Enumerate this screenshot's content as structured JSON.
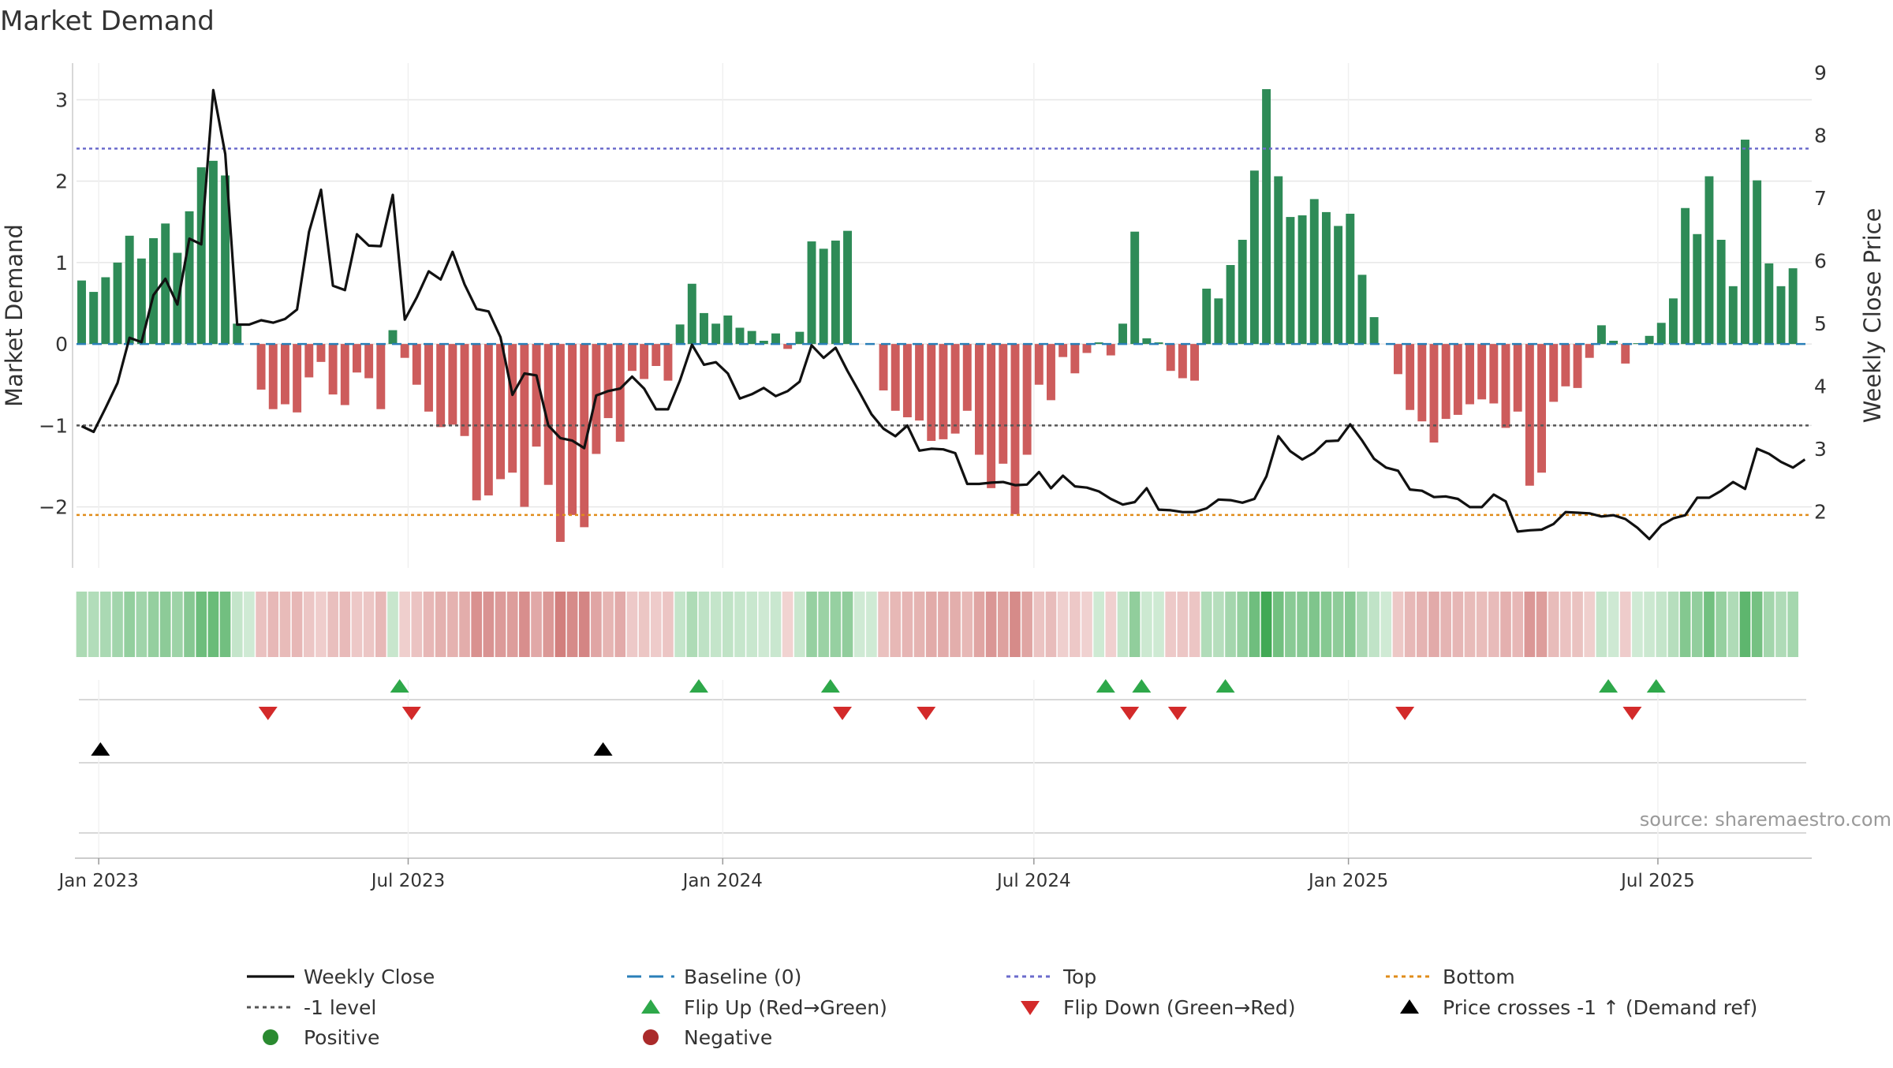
{
  "chart_data": {
    "type": "bar",
    "title": "Market Demand",
    "ylabel": "Market Demand",
    "y2label": "Weekly Close Price",
    "ylim": [
      -2.75,
      3.45
    ],
    "y2lim": [
      1.1,
      9.15
    ],
    "yticks": [
      3,
      2,
      1,
      0,
      -1,
      -2
    ],
    "ytick_labels": [
      "3",
      "2",
      "1",
      "0",
      "−1",
      "−2"
    ],
    "y2ticks": [
      9,
      8,
      7,
      6,
      5,
      4,
      3,
      2
    ],
    "y2tick_labels": [
      "9",
      "8",
      "7",
      "6",
      "5",
      "4",
      "3",
      "2"
    ],
    "x_start": "2022-12-19",
    "x_end": "2025-09-29",
    "bar_dates_first": "2022-12-22",
    "bar_interval_days": 7,
    "xticks": [
      {
        "date": "2023-01-01",
        "label": "Jan 2023"
      },
      {
        "date": "2023-07-01",
        "label": "Jul 2023"
      },
      {
        "date": "2024-01-01",
        "label": "Jan 2024"
      },
      {
        "date": "2024-07-01",
        "label": "Jul 2024"
      },
      {
        "date": "2025-01-01",
        "label": "Jan 2025"
      },
      {
        "date": "2025-07-01",
        "label": "Jul 2025"
      }
    ],
    "reference_lines": [
      {
        "name": "Top",
        "value": 2.4,
        "color": "#6b6bcc"
      },
      {
        "name": "-1 level",
        "value": -1.0,
        "color": "#555555"
      },
      {
        "name": "Bottom",
        "value": -2.1,
        "color": "#e08c1a"
      },
      {
        "name": "Baseline (0)",
        "value": 0,
        "color": "#2a7fb8"
      }
    ],
    "demand": [
      0.78,
      0.64,
      0.82,
      1.0,
      1.33,
      1.05,
      1.3,
      1.48,
      1.12,
      1.63,
      2.17,
      2.25,
      2.07,
      0.25,
      0.0,
      -0.56,
      -0.8,
      -0.74,
      -0.84,
      -0.41,
      -0.22,
      -0.62,
      -0.75,
      -0.35,
      -0.42,
      -0.8,
      0.17,
      -0.17,
      -0.5,
      -0.83,
      -1.02,
      -0.99,
      -1.13,
      -1.92,
      -1.86,
      -1.66,
      -1.58,
      -2.0,
      -1.26,
      -1.73,
      -2.43,
      -2.1,
      -2.25,
      -1.35,
      -0.91,
      -1.2,
      -0.33,
      -0.43,
      -0.27,
      -0.45,
      0.24,
      0.74,
      0.38,
      0.25,
      0.35,
      0.2,
      0.16,
      0.04,
      0.13,
      -0.06,
      0.15,
      1.26,
      1.17,
      1.27,
      1.39,
      0.0,
      0.0,
      -0.57,
      -0.82,
      -0.9,
      -0.94,
      -1.19,
      -1.17,
      -1.1,
      -0.82,
      -1.36,
      -1.77,
      -1.47,
      -2.09,
      -1.36,
      -0.5,
      -0.69,
      -0.16,
      -0.36,
      -0.11,
      0.02,
      -0.14,
      0.25,
      1.38,
      0.07,
      0.02,
      -0.33,
      -0.42,
      -0.45,
      0.68,
      0.56,
      0.97,
      1.28,
      2.13,
      3.13,
      2.06,
      1.56,
      1.58,
      1.78,
      1.62,
      1.45,
      1.6,
      0.85,
      0.33,
      0.0,
      -0.37,
      -0.81,
      -0.95,
      -1.21,
      -0.92,
      -0.87,
      -0.74,
      -0.68,
      -0.73,
      -1.03,
      -0.83,
      -1.74,
      -1.58,
      -0.71,
      -0.52,
      -0.54,
      -0.17,
      0.23,
      0.04,
      -0.24,
      0.01,
      0.1,
      0.26,
      0.56,
      1.67,
      1.35,
      2.06,
      1.28,
      0.71,
      2.51,
      2.01,
      0.99,
      0.71,
      0.93
    ],
    "price": [
      3.36,
      3.27,
      3.65,
      4.05,
      4.77,
      4.7,
      5.45,
      5.71,
      5.3,
      6.35,
      6.26,
      8.72,
      7.7,
      4.98,
      4.98,
      5.05,
      5.01,
      5.07,
      5.22,
      6.46,
      7.13,
      5.6,
      5.53,
      6.42,
      6.24,
      6.23,
      7.05,
      5.06,
      5.41,
      5.83,
      5.7,
      6.14,
      5.62,
      5.23,
      5.19,
      4.78,
      3.86,
      4.2,
      4.17,
      3.37,
      3.17,
      3.13,
      3.01,
      3.85,
      3.92,
      3.96,
      4.15,
      3.96,
      3.63,
      3.63,
      4.09,
      4.66,
      4.34,
      4.38,
      4.2,
      3.8,
      3.87,
      3.97,
      3.84,
      3.92,
      4.07,
      4.65,
      4.45,
      4.61,
      4.24,
      3.9,
      3.55,
      3.32,
      3.2,
      3.37,
      2.97,
      3.0,
      2.99,
      2.93,
      2.44,
      2.44,
      2.46,
      2.47,
      2.42,
      2.43,
      2.63,
      2.37,
      2.57,
      2.4,
      2.38,
      2.32,
      2.2,
      2.11,
      2.15,
      2.37,
      2.03,
      2.02,
      1.99,
      1.99,
      2.05,
      2.19,
      2.18,
      2.14,
      2.2,
      2.56,
      3.2,
      2.96,
      2.83,
      2.94,
      3.12,
      3.13,
      3.39,
      3.13,
      2.84,
      2.7,
      2.65,
      2.35,
      2.33,
      2.23,
      2.24,
      2.2,
      2.07,
      2.07,
      2.27,
      2.16,
      1.68,
      1.7,
      1.71,
      1.8,
      1.99,
      1.98,
      1.97,
      1.92,
      1.94,
      1.88,
      1.74,
      1.56,
      1.78,
      1.89,
      1.94,
      2.22,
      2.22,
      2.33,
      2.47,
      2.36,
      3.0,
      2.92,
      2.79,
      2.7,
      2.83
    ],
    "flip_up_dates": [
      "2023-06-26",
      "2023-12-18",
      "2024-03-04",
      "2024-08-12",
      "2024-09-02",
      "2024-10-21",
      "2025-06-02",
      "2025-06-30"
    ],
    "flip_down_dates": [
      "2023-04-10",
      "2023-07-03",
      "2024-03-11",
      "2024-04-29",
      "2024-08-26",
      "2024-09-23",
      "2025-02-03",
      "2025-06-16"
    ],
    "price_cross_dates": [
      "2023-01-02",
      "2023-10-23"
    ],
    "source": "source: sharemaestro.com",
    "legend": {
      "placement": "bottom",
      "entries": [
        {
          "label": "Weekly Close",
          "kind": "line",
          "color": "#111111"
        },
        {
          "label": "Baseline (0)",
          "kind": "dash",
          "color": "#2a7fb8"
        },
        {
          "label": "Top",
          "kind": "dot",
          "color": "#6b6bcc"
        },
        {
          "label": "Bottom",
          "kind": "dot",
          "color": "#e08c1a"
        },
        {
          "label": "-1 level",
          "kind": "dot",
          "color": "#555555"
        },
        {
          "label": "Flip Up (Red→Green)",
          "kind": "tri-up",
          "color": "#2ea84a"
        },
        {
          "label": "Flip Down (Green→Red)",
          "kind": "tri-down",
          "color": "#d32a2a"
        },
        {
          "label": "Price crosses -1 ↑ (Demand ref)",
          "kind": "tri-up",
          "color": "#000000"
        },
        {
          "label": "Positive",
          "kind": "circle",
          "color": "#2a8a30"
        },
        {
          "label": "Negative",
          "kind": "circle",
          "color": "#aa2a2a"
        }
      ]
    },
    "colors": {
      "positive_bar": "#2e8b57",
      "negative_bar": "#cd5c5c",
      "price_line": "#111111",
      "grid": "#e6e6e6",
      "axis": "#cccccc"
    }
  }
}
